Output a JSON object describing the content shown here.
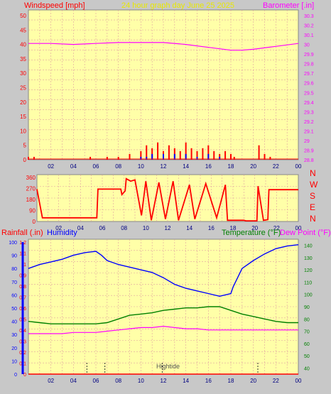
{
  "header": {
    "title": "24 hour graph day   June 25 2025"
  },
  "colors": {
    "title": "#e8e800",
    "wind": "#ff0000",
    "gust_axis": "#ff3030",
    "barometer": "#ff00ff",
    "wind_dir": "#ff0000",
    "rain": "#ff0000",
    "humidity": "#0000ff",
    "temperature": "#008000",
    "dewpoint": "#ff00ff",
    "rain_axis": "#0000ff",
    "grid": "#e0a0a0"
  },
  "panels": [
    {
      "left_title": "Windspeed [mph]",
      "right_title": "Barometer [.in]"
    },
    {
      "compass_labels": [
        "N",
        "W",
        "S",
        "E",
        "N"
      ]
    },
    {
      "left_title": "Rainfall (.in)",
      "left_title2": "Humidity",
      "right_title": "Temperature (°F)",
      "right_title2": "Dew Point (°F)",
      "tide_label": "Hightide"
    }
  ],
  "chart_data": [
    {
      "type": "line",
      "title": "24 hour graph day   June 25 2025",
      "x_ticks": [
        "02",
        "04",
        "06",
        "08",
        "10",
        "12",
        "14",
        "16",
        "18",
        "20",
        "22",
        "00"
      ],
      "y_left": {
        "label": "Windspeed [mph]",
        "ticks": [
          "0",
          "5",
          "10",
          "15",
          "20",
          "25",
          "30",
          "35",
          "40",
          "45",
          "50"
        ],
        "range": [
          0,
          50
        ]
      },
      "y_right": {
        "label": "Barometer [.in]",
        "ticks": [
          "28.8",
          "28.9",
          "29",
          "29.1",
          "29.2",
          "29.3",
          "29.4",
          "29.5",
          "29.6",
          "29.7",
          "29.8",
          "29.9",
          "30",
          "30.1",
          "30.2",
          "30.3"
        ],
        "range": [
          28.8,
          30.3
        ]
      },
      "series": [
        {
          "name": "Barometer",
          "axis": "right",
          "x": [
            0,
            2,
            4,
            6,
            8,
            10,
            12,
            14,
            16,
            18,
            19,
            20,
            22,
            24
          ],
          "values": [
            30.01,
            30.01,
            30.0,
            30.01,
            30.02,
            30.02,
            30.02,
            30.0,
            29.97,
            29.94,
            29.94,
            29.95,
            29.98,
            30.01
          ]
        },
        {
          "name": "Windspeed",
          "axis": "left",
          "x": [
            0,
            0.5,
            1,
            5.5,
            7,
            8,
            9,
            10,
            10.5,
            11,
            11.5,
            12,
            12.5,
            13,
            13.5,
            14,
            14.5,
            15,
            15.5,
            16,
            16.5,
            17,
            17.5,
            18,
            18.3,
            20.5,
            21,
            21.5
          ],
          "values": [
            1,
            1,
            0,
            1,
            1,
            1,
            2,
            3,
            5,
            4,
            6,
            3,
            5,
            4,
            3,
            6,
            4,
            3,
            4,
            5,
            3,
            2,
            3,
            2,
            1,
            5,
            2,
            1
          ]
        },
        {
          "name": "Gust",
          "axis": "left",
          "x": [
            8.5,
            10,
            10.5,
            11,
            12,
            13,
            14,
            15,
            16,
            17,
            18
          ],
          "values": [
            0,
            1,
            1,
            2,
            2,
            2,
            2,
            1,
            2,
            1,
            0
          ]
        }
      ]
    },
    {
      "type": "line",
      "x_ticks": [
        "02",
        "04",
        "06",
        "08",
        "10",
        "12",
        "14",
        "16",
        "18",
        "20",
        "22",
        "00"
      ],
      "y_left": {
        "ticks": [
          "0",
          "90",
          "180",
          "270",
          "360"
        ],
        "range": [
          0,
          360
        ]
      },
      "y_right": {
        "labels": [
          "N",
          "W",
          "S",
          "E",
          "N"
        ]
      },
      "series": [
        {
          "name": "Wind direction",
          "x": [
            0,
            0.5,
            5.5,
            5.6,
            7.7,
            7.8,
            8.1,
            8.2,
            8.6,
            9.0,
            9.6,
            10.0,
            10.5,
            11.2,
            11.8,
            12.5,
            13.0,
            14.0,
            14.5,
            15.5,
            16.5,
            17.3,
            17.5,
            19.0,
            19.2,
            20.2,
            20.3,
            20.8,
            21.2,
            21.3,
            24
          ],
          "values": [
            265,
            30,
            30,
            265,
            265,
            220,
            250,
            350,
            330,
            340,
            50,
            330,
            10,
            320,
            20,
            330,
            10,
            300,
            20,
            310,
            30,
            300,
            10,
            10,
            5,
            5,
            290,
            10,
            15,
            260,
            260
          ]
        }
      ]
    },
    {
      "type": "line",
      "x_ticks": [
        "02",
        "04",
        "06",
        "08",
        "10",
        "12",
        "14",
        "16",
        "18",
        "20",
        "22",
        "00"
      ],
      "y_left_rain": {
        "label": "Rainfall (.in)",
        "ticks": [
          "0",
          "0.1",
          "0.2",
          "0.3",
          "0.4",
          "0.5",
          "0.6",
          "0.7",
          "0.8",
          "0.9",
          "1",
          "1.1",
          "1.2"
        ],
        "range": [
          0,
          1.2
        ]
      },
      "y_left_humidity": {
        "label": "Humidity",
        "ticks": [
          "0",
          "10",
          "20",
          "30",
          "40",
          "50",
          "60",
          "70",
          "80",
          "90",
          "100"
        ],
        "range": [
          0,
          100
        ]
      },
      "y_right": {
        "label": "Temperature (°F)",
        "ticks": [
          "40",
          "50",
          "60",
          "70",
          "80",
          "90",
          "100",
          "110",
          "120",
          "130",
          "140"
        ],
        "range": [
          35,
          145
        ]
      },
      "series": [
        {
          "name": "Humidity",
          "axis": "humidity",
          "x": [
            0,
            1,
            2,
            3,
            4,
            5,
            6,
            6.5,
            7,
            8,
            9,
            10,
            11,
            12,
            13,
            14,
            15,
            16,
            17,
            18,
            18.2,
            19,
            20,
            21,
            22,
            23,
            24
          ],
          "values": [
            80,
            83,
            85,
            87,
            90,
            92,
            93,
            90,
            86,
            83,
            81,
            79,
            77,
            73,
            68,
            65,
            63,
            61,
            59,
            61,
            66,
            80,
            86,
            91,
            95,
            97,
            98
          ]
        },
        {
          "name": "Temperature",
          "axis": "right",
          "x": [
            0,
            1,
            2,
            3,
            4,
            5,
            6,
            7,
            8,
            9,
            10,
            11,
            12,
            13,
            14,
            15,
            16,
            17,
            18,
            19,
            20,
            21,
            22,
            23,
            24
          ],
          "values": [
            78,
            77,
            76,
            76,
            76,
            76,
            76,
            77,
            80,
            83,
            84,
            85,
            87,
            88,
            89,
            89,
            90,
            90,
            87,
            84,
            82,
            80,
            78,
            77,
            77
          ]
        },
        {
          "name": "Dew Point",
          "axis": "right",
          "x": [
            0,
            1,
            2,
            3,
            4,
            5,
            6,
            7,
            8,
            9,
            10,
            11,
            12,
            13,
            14,
            15,
            16,
            17,
            18,
            19,
            20,
            21,
            22,
            23,
            24
          ],
          "values": [
            68,
            68,
            68,
            68,
            69,
            69,
            69,
            70,
            71,
            72,
            73,
            73,
            74,
            73,
            72,
            72,
            71,
            71,
            71,
            71,
            71,
            71,
            71,
            71,
            71
          ]
        },
        {
          "name": "Rainfall",
          "axis": "rain",
          "x": [
            0,
            24
          ],
          "values": [
            0,
            0
          ]
        }
      ]
    }
  ]
}
